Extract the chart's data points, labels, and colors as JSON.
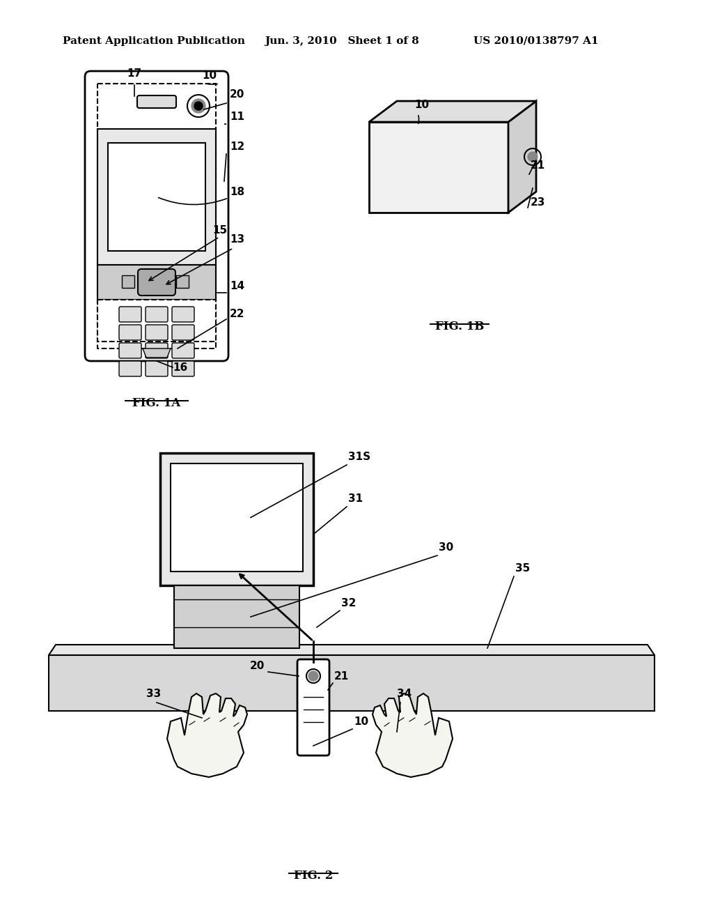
{
  "background_color": "#ffffff",
  "header_left": "Patent Application Publication",
  "header_center": "Jun. 3, 2010   Sheet 1 of 8",
  "header_right": "US 2010/0138797 A1",
  "header_fontsize": 11,
  "fig1a_label": "FIG. 1A",
  "fig1b_label": "FIG. 1B",
  "fig2_label": "FIG. 2"
}
